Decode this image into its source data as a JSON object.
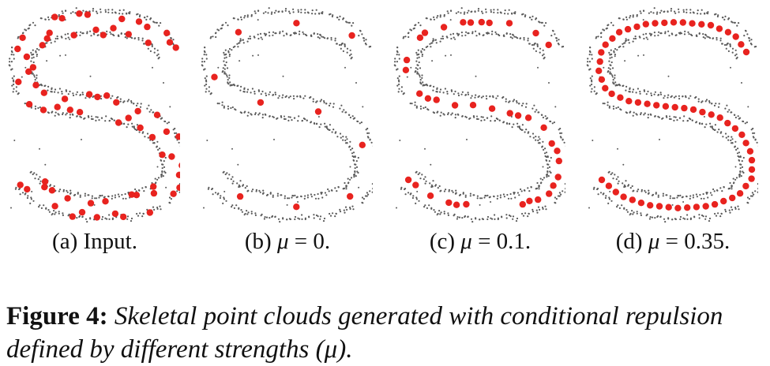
{
  "panels": [
    {
      "id": "a",
      "label": "(a)",
      "caption": "Input.",
      "mu": null,
      "mode": "input"
    },
    {
      "id": "b",
      "label": "(b)",
      "caption": "",
      "mu": "0",
      "mode": "sparse"
    },
    {
      "id": "c",
      "label": "(c)",
      "caption": "",
      "mu": "0.1",
      "mode": "medium"
    },
    {
      "id": "d",
      "label": "(d)",
      "caption": "",
      "mu": "0.35",
      "mode": "dense"
    }
  ],
  "math": {
    "mu_symbol": "μ",
    "equals": "="
  },
  "caption": {
    "label": "Figure 4:",
    "text": "Skeletal point clouds generated with conditional repulsion defined by different strengths (μ)."
  },
  "colors": {
    "gray_points": "#5a5a5a",
    "red_points": "#e8231f",
    "background": "#ffffff"
  }
}
